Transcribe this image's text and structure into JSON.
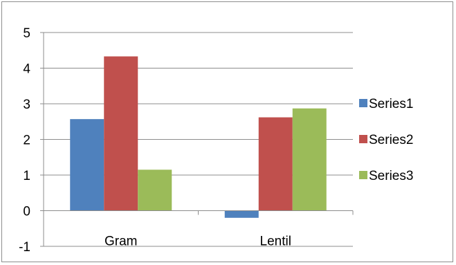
{
  "chart_data": {
    "type": "bar",
    "categories": [
      "Gram",
      "Lentil"
    ],
    "series": [
      {
        "name": "Series1",
        "values": [
          2.57,
          -0.2
        ],
        "color": "#4F81BD"
      },
      {
        "name": "Series2",
        "values": [
          4.33,
          2.62
        ],
        "color": "#C0504D"
      },
      {
        "name": "Series3",
        "values": [
          1.15,
          2.87
        ],
        "color": "#9BBB59"
      }
    ],
    "yticks": [
      "-1",
      "0",
      "1",
      "2",
      "3",
      "4",
      "5"
    ],
    "ylim": [
      -1,
      5
    ],
    "title": "",
    "xlabel": "",
    "ylabel": "",
    "grid": true,
    "legend_position": "right"
  }
}
